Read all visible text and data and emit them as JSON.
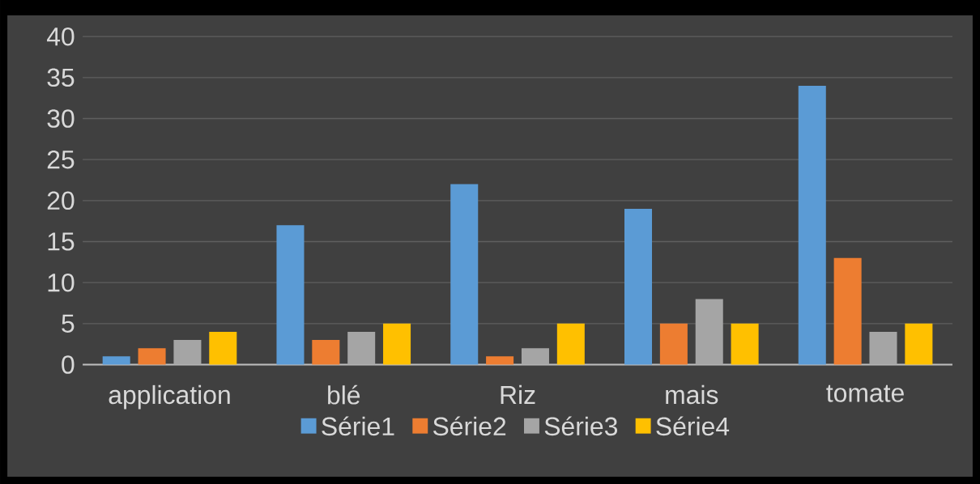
{
  "chart_data": {
    "type": "bar",
    "categories": [
      "application",
      "blé",
      "Riz",
      "mais",
      "tomate"
    ],
    "series": [
      {
        "name": "Série1",
        "color": "#5b9bd5",
        "values": [
          1,
          17,
          22,
          19,
          34
        ]
      },
      {
        "name": "Série2",
        "color": "#ed7d31",
        "values": [
          2,
          3,
          1,
          5,
          13
        ]
      },
      {
        "name": "Série3",
        "color": "#a5a5a5",
        "values": [
          3,
          4,
          2,
          8,
          4
        ]
      },
      {
        "name": "Série4",
        "color": "#ffc000",
        "values": [
          4,
          5,
          5,
          5,
          5
        ]
      }
    ],
    "ylim": [
      0,
      40
    ],
    "yticks": [
      0,
      5,
      10,
      15,
      20,
      25,
      30,
      35,
      40
    ],
    "grid": "y",
    "legend": "bottom"
  }
}
